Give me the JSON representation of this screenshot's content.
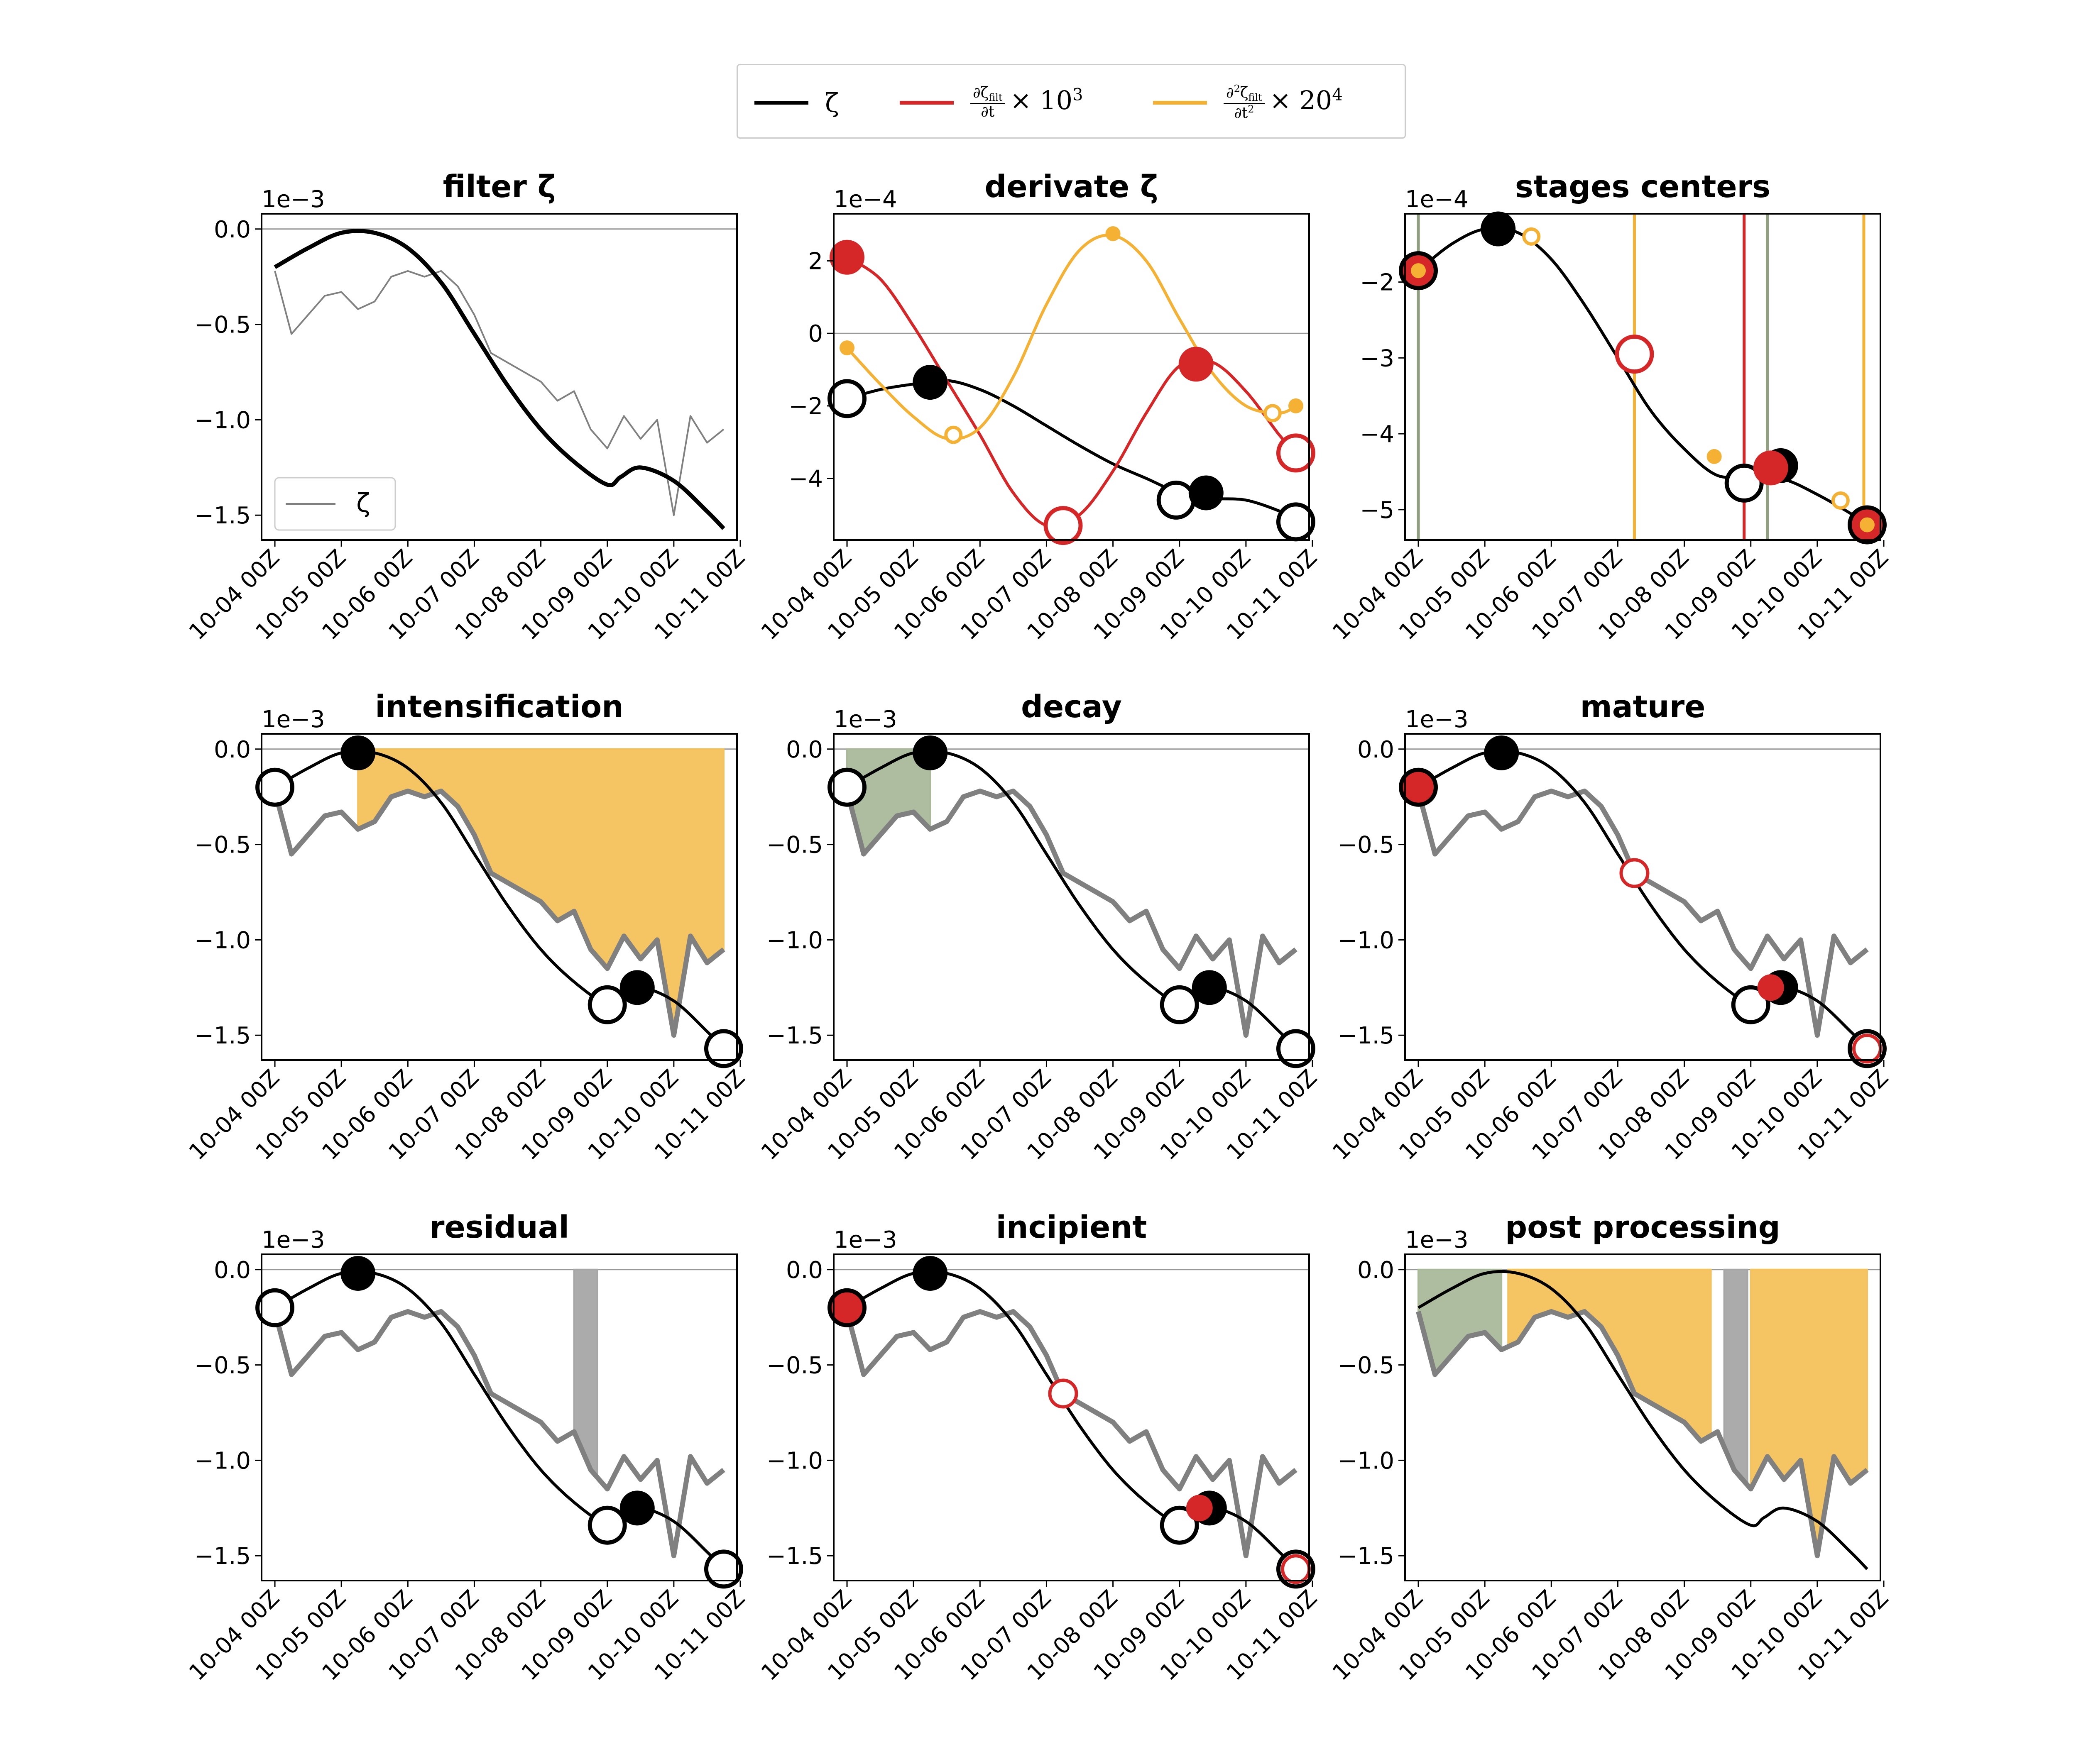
{
  "legend": {
    "zeta_label": "ζ",
    "deriv1_num": "∂ζ",
    "deriv1_sub": "filt",
    "deriv1_den": "∂t",
    "deriv1_factor": "× 10",
    "deriv1_exp": "3",
    "deriv2_num": "∂",
    "deriv2_num_exp": "2",
    "deriv2_num_b": "ζ",
    "deriv2_sub": "filt",
    "deriv2_den": "∂t",
    "deriv2_den_exp": "2",
    "deriv2_factor": "× 20",
    "deriv2_exp": "4"
  },
  "colors": {
    "zeta": "#000000",
    "raw": "#808080",
    "deriv1": "#d62728",
    "deriv2": "#f4b134",
    "intensification_fill": "#f6c25b",
    "decay_fill": "#aab99a",
    "residual_fill": "#a6a6a6"
  },
  "chart_data": [
    {
      "type": "line",
      "title": "filter ζ",
      "offset_label": "1e−3",
      "x_tick_labels": [
        "10-04 00Z",
        "10-05 00Z",
        "10-06 00Z",
        "10-07 00Z",
        "10-08 00Z",
        "10-09 00Z",
        "10-10 00Z",
        "10-11 00Z"
      ],
      "y_tick_labels": [
        "0.0",
        "−0.5",
        "−1.0",
        "−1.5"
      ],
      "y_ticks": [
        0.0,
        -0.5,
        -1.0,
        -1.5
      ],
      "ylim": [
        -1.63,
        0.08
      ],
      "xlim": [
        "10-03 18Z",
        "10-11 03Z"
      ],
      "legend": {
        "entries": [
          "ζ"
        ],
        "placement": "lower-left"
      },
      "series": [
        {
          "name": "ζ",
          "role": "raw",
          "x_days": [
            0,
            0.25,
            0.5,
            0.75,
            1,
            1.25,
            1.5,
            1.75,
            2,
            2.25,
            2.5,
            2.75,
            3,
            3.25,
            3.5,
            3.75,
            4,
            4.25,
            4.5,
            4.75,
            5,
            5.25,
            5.5,
            5.75,
            6,
            6.25,
            6.5,
            6.75
          ],
          "values": [
            -0.22,
            -0.55,
            -0.45,
            -0.35,
            -0.33,
            -0.42,
            -0.38,
            -0.25,
            -0.22,
            -0.25,
            -0.22,
            -0.3,
            -0.45,
            -0.65,
            -0.7,
            -0.75,
            -0.8,
            -0.9,
            -0.85,
            -1.05,
            -1.15,
            -0.98,
            -1.1,
            -1.0,
            -1.5,
            -0.98,
            -1.12,
            -1.05
          ]
        },
        {
          "role": "filtered",
          "x_days": [
            0,
            0.5,
            1,
            1.5,
            2,
            2.5,
            3,
            3.5,
            4,
            4.5,
            5,
            5.2,
            5.5,
            6,
            6.5,
            6.75
          ],
          "values": [
            -0.2,
            -0.1,
            -0.02,
            -0.02,
            -0.1,
            -0.28,
            -0.55,
            -0.82,
            -1.05,
            -1.22,
            -1.34,
            -1.3,
            -1.25,
            -1.32,
            -1.48,
            -1.57
          ]
        }
      ]
    },
    {
      "type": "line",
      "title": "derivate ζ",
      "offset_label": "1e−4",
      "x_tick_labels": [
        "10-04 00Z",
        "10-05 00Z",
        "10-06 00Z",
        "10-07 00Z",
        "10-08 00Z",
        "10-09 00Z",
        "10-10 00Z",
        "10-11 00Z"
      ],
      "y_tick_labels": [
        "2",
        "0",
        "−2",
        "−4"
      ],
      "y_ticks": [
        2,
        0,
        -2,
        -4
      ],
      "ylim": [
        -5.7,
        3.3
      ],
      "series": [
        {
          "role": "zeta",
          "x_days": [
            0,
            0.5,
            1,
            1.5,
            2,
            2.5,
            3,
            3.5,
            4,
            4.5,
            5,
            5.5,
            6,
            6.5,
            6.75
          ],
          "values": [
            -1.8,
            -1.55,
            -1.4,
            -1.3,
            -1.55,
            -2.0,
            -2.55,
            -3.1,
            -3.6,
            -4.0,
            -4.4,
            -4.55,
            -4.6,
            -4.9,
            -5.15
          ]
        },
        {
          "role": "deriv1",
          "x_days": [
            0,
            0.5,
            1,
            1.5,
            2,
            2.5,
            3,
            3.5,
            4,
            4.5,
            5,
            5.5,
            6,
            6.5,
            6.75
          ],
          "values": [
            2.1,
            1.5,
            0.2,
            -1.3,
            -2.8,
            -4.4,
            -5.3,
            -5.0,
            -3.8,
            -2.2,
            -0.9,
            -0.8,
            -1.6,
            -2.8,
            -3.3
          ]
        },
        {
          "role": "deriv2",
          "x_days": [
            0,
            0.5,
            1,
            1.5,
            2,
            2.5,
            3,
            3.5,
            4,
            4.5,
            5,
            5.5,
            6,
            6.5,
            6.75
          ],
          "values": [
            -0.4,
            -1.4,
            -2.3,
            -2.9,
            -2.6,
            -1.2,
            0.8,
            2.3,
            2.7,
            2.0,
            0.4,
            -1.1,
            -2.0,
            -2.2,
            -2.0
          ]
        }
      ]
    },
    {
      "type": "line",
      "title": "stages centers",
      "offset_label": "1e−4",
      "x_tick_labels": [
        "10-04 00Z",
        "10-05 00Z",
        "10-06 00Z",
        "10-07 00Z",
        "10-08 00Z",
        "10-09 00Z",
        "10-10 00Z",
        "10-11 00Z"
      ],
      "y_tick_labels": [
        "−2",
        "−3",
        "−4",
        "−5"
      ],
      "y_ticks": [
        -2,
        -3,
        -4,
        -5
      ],
      "ylim": [
        -5.4,
        -1.1
      ],
      "series": [
        {
          "role": "zeta",
          "x_days": [
            0,
            0.5,
            1,
            1.5,
            2,
            2.5,
            3,
            3.5,
            4,
            4.5,
            5,
            5.5,
            6,
            6.5,
            6.75
          ],
          "values": [
            -1.85,
            -1.5,
            -1.3,
            -1.35,
            -1.7,
            -2.3,
            -3.0,
            -3.7,
            -4.2,
            -4.55,
            -4.55,
            -4.6,
            -4.8,
            -5.05,
            -5.2
          ]
        }
      ],
      "vertical_lines": [
        {
          "x_day": 0.0,
          "color_role": "decay"
        },
        {
          "x_day": 3.25,
          "color_role": "deriv2"
        },
        {
          "x_day": 4.9,
          "color_role": "deriv1"
        },
        {
          "x_day": 5.25,
          "color_role": "decay"
        },
        {
          "x_day": 6.7,
          "color_role": "deriv2"
        }
      ]
    },
    {
      "type": "area",
      "title": "intensification",
      "offset_label": "1e−3",
      "x_tick_labels": [
        "10-04 00Z",
        "10-05 00Z",
        "10-06 00Z",
        "10-07 00Z",
        "10-08 00Z",
        "10-09 00Z",
        "10-10 00Z",
        "10-11 00Z"
      ],
      "y_tick_labels": [
        "0.0",
        "−0.5",
        "−1.0",
        "−1.5"
      ],
      "y_ticks": [
        0.0,
        -0.5,
        -1.0,
        -1.5
      ],
      "ylim": [
        -1.63,
        0.08
      ],
      "shaded_ranges": [
        {
          "from_day": 1.25,
          "to_day": 6.75,
          "color_role": "intensification"
        }
      ]
    },
    {
      "type": "area",
      "title": "decay",
      "offset_label": "1e−3",
      "x_tick_labels": [
        "10-04 00Z",
        "10-05 00Z",
        "10-06 00Z",
        "10-07 00Z",
        "10-08 00Z",
        "10-09 00Z",
        "10-10 00Z",
        "10-11 00Z"
      ],
      "y_tick_labels": [
        "0.0",
        "−0.5",
        "−1.0",
        "−1.5"
      ],
      "y_ticks": [
        0.0,
        -0.5,
        -1.0,
        -1.5
      ],
      "ylim": [
        -1.63,
        0.08
      ],
      "shaded_ranges": [
        {
          "from_day": 0.0,
          "to_day": 1.25,
          "color_role": "decay"
        }
      ]
    },
    {
      "type": "line",
      "title": "mature",
      "offset_label": "1e−3",
      "x_tick_labels": [
        "10-04 00Z",
        "10-05 00Z",
        "10-06 00Z",
        "10-07 00Z",
        "10-08 00Z",
        "10-09 00Z",
        "10-10 00Z",
        "10-11 00Z"
      ],
      "y_tick_labels": [
        "0.0",
        "−0.5",
        "−1.0",
        "−1.5"
      ],
      "y_ticks": [
        0.0,
        -0.5,
        -1.0,
        -1.5
      ],
      "ylim": [
        -1.63,
        0.08
      ]
    },
    {
      "type": "area",
      "title": "residual",
      "offset_label": "1e−3",
      "x_tick_labels": [
        "10-04 00Z",
        "10-05 00Z",
        "10-06 00Z",
        "10-07 00Z",
        "10-08 00Z",
        "10-09 00Z",
        "10-10 00Z",
        "10-11 00Z"
      ],
      "y_tick_labels": [
        "0.0",
        "−0.5",
        "−1.0",
        "−1.5"
      ],
      "y_ticks": [
        0.0,
        -0.5,
        -1.0,
        -1.5
      ],
      "ylim": [
        -1.63,
        0.08
      ],
      "shaded_ranges": [
        {
          "from_day": 4.5,
          "to_day": 4.85,
          "color_role": "residual"
        }
      ]
    },
    {
      "type": "line",
      "title": "incipient",
      "offset_label": "1e−3",
      "x_tick_labels": [
        "10-04 00Z",
        "10-05 00Z",
        "10-06 00Z",
        "10-07 00Z",
        "10-08 00Z",
        "10-09 00Z",
        "10-10 00Z",
        "10-11 00Z"
      ],
      "y_tick_labels": [
        "0.0",
        "−0.5",
        "−1.0",
        "−1.5"
      ],
      "y_ticks": [
        0.0,
        -0.5,
        -1.0,
        -1.5
      ],
      "ylim": [
        -1.63,
        0.08
      ]
    },
    {
      "type": "area",
      "title": "post processing",
      "offset_label": "1e−3",
      "x_tick_labels": [
        "10-04 00Z",
        "10-05 00Z",
        "10-06 00Z",
        "10-07 00Z",
        "10-08 00Z",
        "10-09 00Z",
        "10-10 00Z",
        "10-11 00Z"
      ],
      "y_tick_labels": [
        "0.0",
        "−0.5",
        "−1.0",
        "−1.5"
      ],
      "y_ticks": [
        0.0,
        -0.5,
        -1.0,
        -1.5
      ],
      "ylim": [
        -1.63,
        0.08
      ],
      "shaded_ranges": [
        {
          "from_day": 0.0,
          "to_day": 1.25,
          "color_role": "decay"
        },
        {
          "from_day": 1.35,
          "to_day": 4.4,
          "color_role": "intensification"
        },
        {
          "from_day": 4.6,
          "to_day": 4.95,
          "color_role": "residual"
        },
        {
          "from_day": 5.0,
          "to_day": 6.75,
          "color_role": "intensification"
        }
      ]
    }
  ],
  "markers": {
    "filled_black": "peak",
    "hollow_black": "trough",
    "filled_red": "deriv1 extremum",
    "hollow_red": "deriv1 minimum",
    "filled_orange": "deriv2 max",
    "hollow_orange": "deriv2 min"
  }
}
